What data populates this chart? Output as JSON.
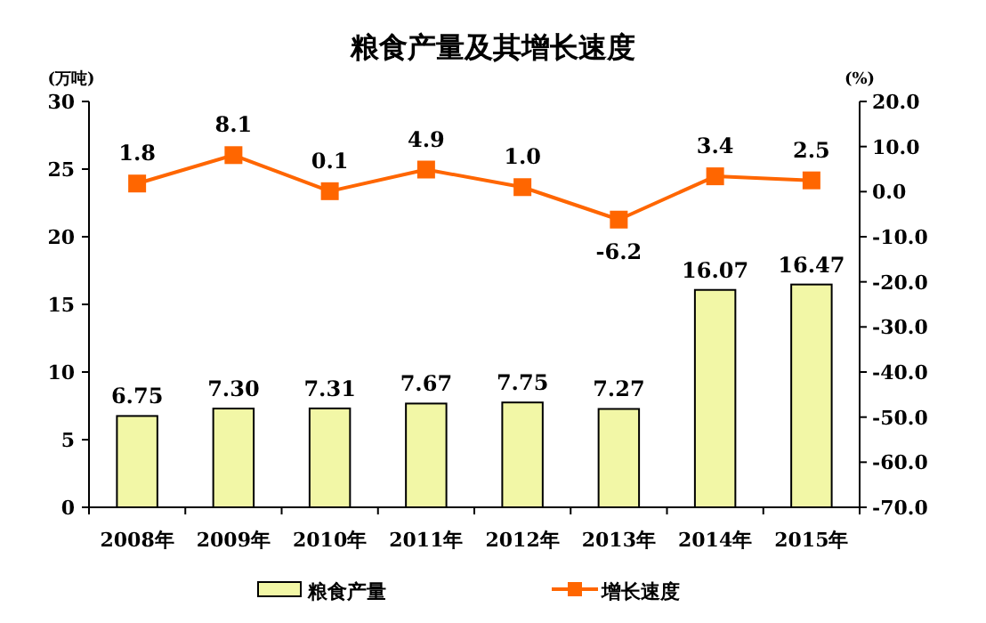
{
  "chart_data": {
    "type": "bar",
    "title": "粮食产量及其增长速度",
    "ylabel": "(万吨)",
    "y2label": "(%)",
    "categories": [
      "2008年",
      "2009年",
      "2010年",
      "2011年",
      "2012年",
      "2013年",
      "2014年",
      "2015年"
    ],
    "series": [
      {
        "name": "粮食产量",
        "color": "#f2f7a6",
        "values": [
          6.75,
          7.3,
          7.31,
          7.67,
          7.75,
          7.27,
          16.07,
          16.47
        ],
        "value_labels": [
          "6.75",
          "7.30",
          "7.31",
          "7.67",
          "7.75",
          "7.27",
          "16.07",
          "16.47"
        ]
      },
      {
        "name": "增长速度",
        "type": "line",
        "axis": "y2",
        "color": "#ff6600",
        "marker": "square",
        "values": [
          1.8,
          8.1,
          0.1,
          4.9,
          1.0,
          -6.2,
          3.4,
          2.5
        ],
        "value_labels": [
          "1.8",
          "8.1",
          "0.1",
          "4.9",
          "1.0",
          "-6.2",
          "3.4",
          "2.5"
        ]
      }
    ],
    "ylim": [
      0,
      30
    ],
    "yticks": [
      0,
      5,
      10,
      15,
      20,
      25,
      30
    ],
    "y2lim": [
      -70,
      20
    ],
    "y2ticks": [
      {
        "value": -70,
        "label": "-70.0"
      },
      {
        "value": -60,
        "label": "-60.0"
      },
      {
        "value": -50,
        "label": "-50.0"
      },
      {
        "value": -40,
        "label": "-40.0"
      },
      {
        "value": -30,
        "label": "-30.0"
      },
      {
        "value": -20,
        "label": "-20.0"
      },
      {
        "value": -10,
        "label": "-10.0"
      },
      {
        "value": 0,
        "label": "0.0"
      },
      {
        "value": 10,
        "label": "10.0"
      },
      {
        "value": 20,
        "label": "20.0"
      }
    ],
    "grid": false,
    "legend": "bottom"
  }
}
